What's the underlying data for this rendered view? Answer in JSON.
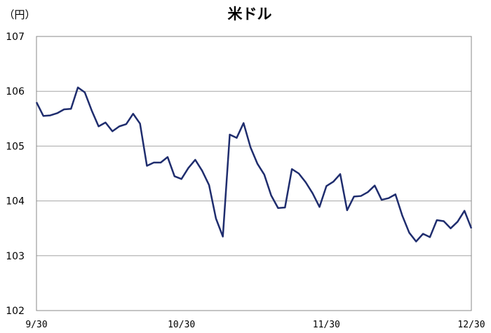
{
  "chart_data": {
    "type": "line",
    "title": "米ドル",
    "unit_label": "（円）",
    "ylim": [
      102,
      107
    ],
    "y_ticks": [
      "102",
      "103",
      "104",
      "105",
      "106",
      "107"
    ],
    "x_tick_labels": [
      "9/30",
      "10/30",
      "11/30",
      "12/30"
    ],
    "grid": true,
    "legend": "none",
    "series": [
      {
        "color": "#1f2d6e",
        "values": [
          105.8,
          105.55,
          105.56,
          105.6,
          105.67,
          105.68,
          106.07,
          105.98,
          105.65,
          105.36,
          105.43,
          105.27,
          105.36,
          105.4,
          105.59,
          105.41,
          104.64,
          104.7,
          104.7,
          104.8,
          104.45,
          104.4,
          104.6,
          104.75,
          104.55,
          104.29,
          103.68,
          103.35,
          105.21,
          105.15,
          105.42,
          104.98,
          104.68,
          104.48,
          104.1,
          103.87,
          103.88,
          104.58,
          104.5,
          104.34,
          104.14,
          103.89,
          104.27,
          104.35,
          104.49,
          103.83,
          104.08,
          104.09,
          104.16,
          104.28,
          104.02,
          104.05,
          104.12,
          103.73,
          103.42,
          103.26,
          103.4,
          103.34,
          103.65,
          103.63,
          103.5,
          103.62,
          103.82,
          103.5
        ]
      }
    ]
  }
}
